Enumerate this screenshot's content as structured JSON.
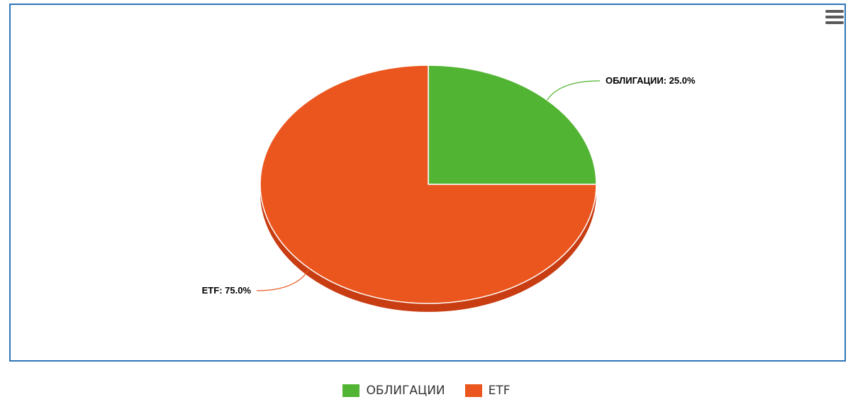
{
  "chart_data": {
    "type": "pie",
    "title": "",
    "slices": [
      {
        "name": "ОБЛИГАЦИИ",
        "value": 25.0,
        "label": "ОБЛИГАЦИИ: 25.0%",
        "color": "#52b433"
      },
      {
        "name": "ETF",
        "value": 75.0,
        "label": "ETF: 75.0%",
        "color": "#eb561e"
      }
    ],
    "legend_position": "bottom-center",
    "style": "3d-tilted"
  },
  "legend": {
    "items": [
      {
        "label": "ОБЛИГАЦИИ",
        "color": "#52b433"
      },
      {
        "label": "ETF",
        "color": "#eb561e"
      }
    ]
  },
  "toolbar": {
    "menu_icon": "hamburger-menu-icon"
  },
  "colors": {
    "border": "#2e75b6",
    "side_green": "#3f9126",
    "side_orange": "#c83d12"
  }
}
